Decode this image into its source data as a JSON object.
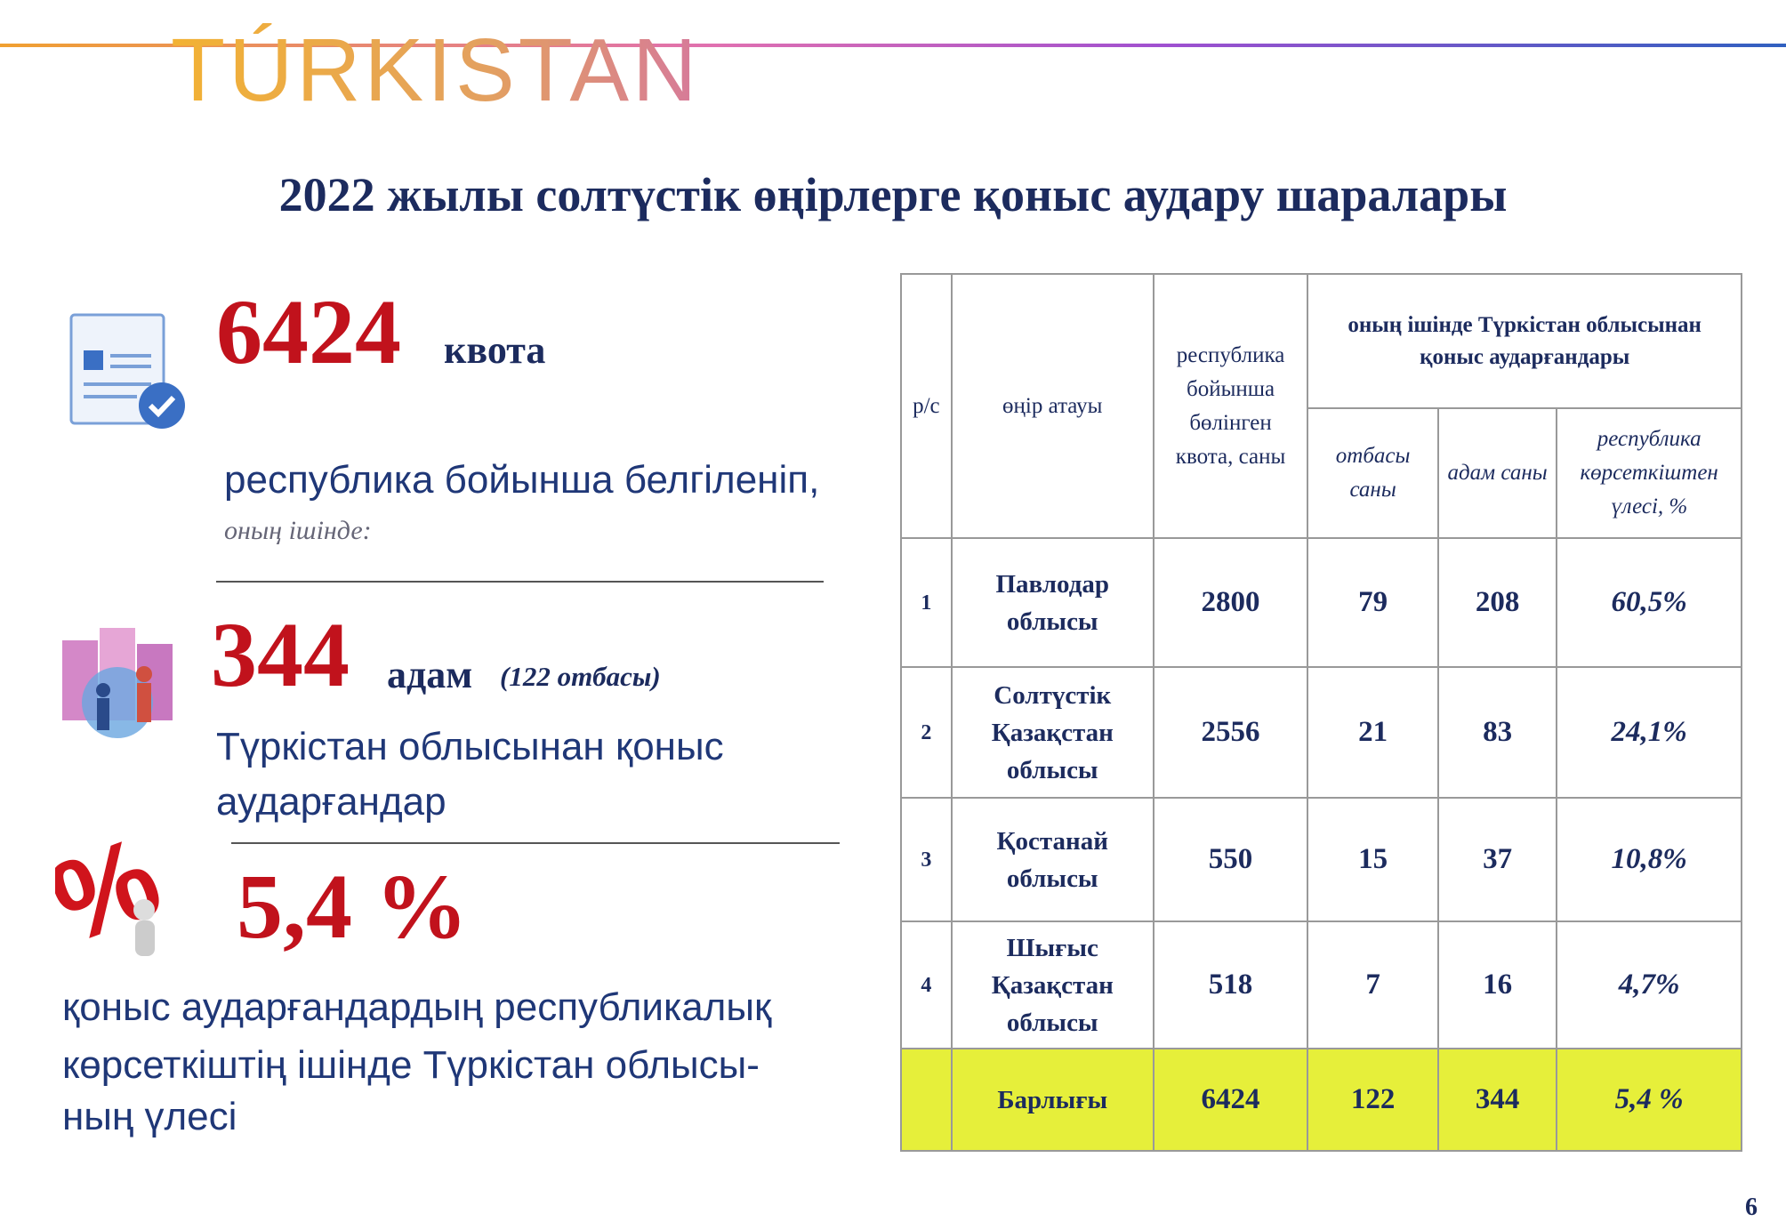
{
  "header": {
    "logo": "TÚRKISTAN",
    "title": "2022 жылы солтүстік өңірлерге қоныс аудару шаралары"
  },
  "left": {
    "quota": {
      "number": "6424",
      "unit": "квота",
      "lines": [
        "республика бойынша белгіленіп,"
      ],
      "note": "оның ішінде:"
    },
    "people": {
      "number": "344",
      "unit": "адам",
      "note": "(122 отбасы)",
      "lines": [
        "Түркістан облысынан қоныс",
        "аударғандар"
      ]
    },
    "share": {
      "number": "5,4 %",
      "lines": [
        "қоныс аударғандардың республикалық",
        "көрсеткіштің ішінде Түркістан облысы-",
        "ның үлесі"
      ]
    }
  },
  "table": {
    "header": {
      "no": "р/с",
      "region": "өңір атауы",
      "quota": "республика бойынша бөлінген квота, саны",
      "group": "оның ішінде Түркістан облысынан қоныс аударғандары",
      "families": "отбасы саны",
      "people": "адам саны",
      "share": "республика көрсеткіштен үлесі, %"
    },
    "rows": [
      [
        1,
        "Павлодар облысы",
        2800,
        79,
        208,
        "60,5%"
      ],
      [
        2,
        "Солтүстік Қазақстан облысы",
        2556,
        21,
        83,
        "24,1%"
      ],
      [
        3,
        "Қостанай облысы",
        550,
        15,
        37,
        "10,8%"
      ],
      [
        4,
        "Шығыс Қазақстан облысы",
        518,
        7,
        16,
        "4,7%"
      ]
    ],
    "total": [
      "Барлығы",
      6424,
      122,
      344,
      "5,4 %"
    ]
  },
  "footer": {
    "page": "6"
  }
}
